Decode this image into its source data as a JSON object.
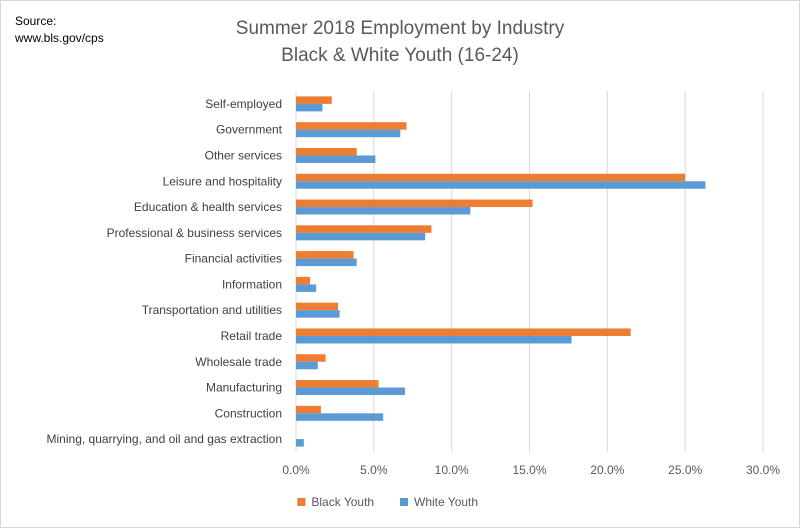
{
  "source": {
    "line1": "Source:",
    "line2": "www.bls.gov/cps"
  },
  "chart_data": {
    "type": "bar",
    "orientation": "horizontal",
    "title": "Summer 2018 Employment by Industry",
    "subtitle": "Black & White Youth (16-24)",
    "xlabel": "",
    "ylabel": "",
    "xlim": [
      0,
      30
    ],
    "x_ticks": [
      "0.0%",
      "5.0%",
      "10.0%",
      "15.0%",
      "20.0%",
      "25.0%",
      "30.0%"
    ],
    "x_tick_values": [
      0,
      5,
      10,
      15,
      20,
      25,
      30
    ],
    "grid": "vertical",
    "legend_position": "bottom",
    "categories": [
      "Self-employed",
      "Government",
      "Other services",
      "Leisure and hospitality",
      "Education & health services",
      "Professional & business services",
      "Financial activities",
      "Information",
      "Transportation and utilities",
      "Retail trade",
      "Wholesale trade",
      "Manufacturing",
      "Construction",
      "Mining, quarrying, and oil and gas extraction"
    ],
    "series": [
      {
        "name": "Black Youth",
        "color": "#ED7D31",
        "values": [
          2.3,
          7.1,
          3.9,
          25.0,
          15.2,
          8.7,
          3.7,
          0.9,
          2.7,
          21.5,
          1.9,
          5.3,
          1.6,
          0.0
        ]
      },
      {
        "name": "White Youth",
        "color": "#5B9BD5",
        "values": [
          1.7,
          6.7,
          5.1,
          26.3,
          11.2,
          8.3,
          3.9,
          1.3,
          2.8,
          17.7,
          1.4,
          7.0,
          5.6,
          0.5
        ]
      }
    ]
  }
}
